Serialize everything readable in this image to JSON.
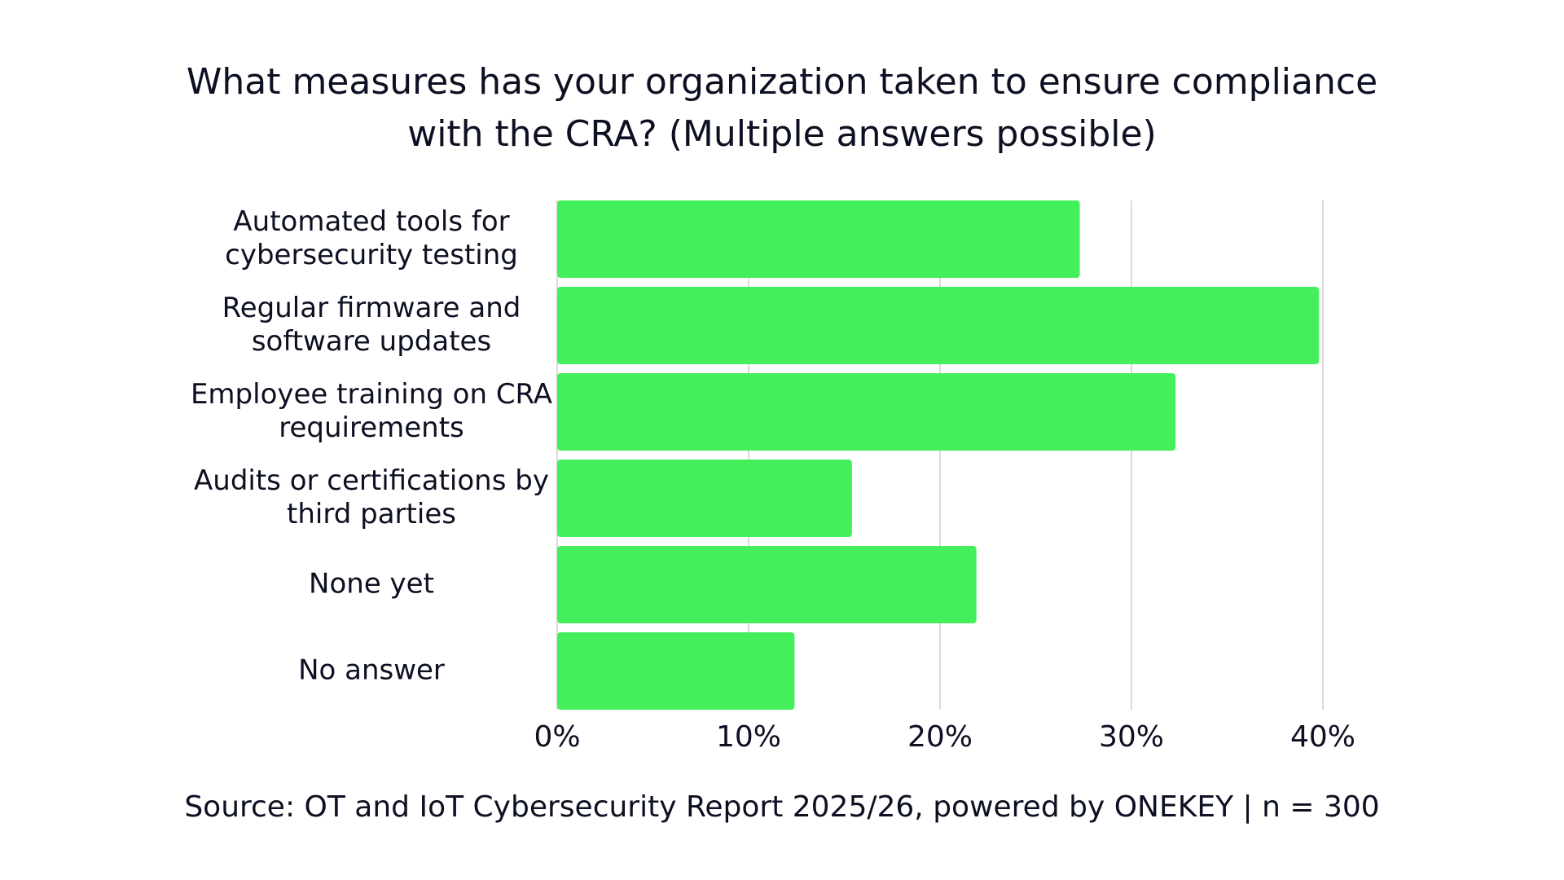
{
  "title_lines": [
    "What measures has your organization taken to ensure compliance",
    "with the CRA? (Multiple answers possible)"
  ],
  "source_note": "Source: OT and IoT Cybersecurity Report 2025/26, powered by ONEKEY | n = 300",
  "colors": {
    "bar": "#44ef5c",
    "grid": "#cfcfcf",
    "text": "#0d1022"
  },
  "chart_data": {
    "type": "bar",
    "orientation": "horizontal",
    "title": "What measures has your organization taken to ensure compliance with the CRA? (Multiple answers possible)",
    "categories": [
      "Automated tools for cybersecurity testing",
      "Regular firmware and software updates",
      "Employee training on CRA requirements",
      "Audits or certifications by third parties",
      "None yet",
      "No answer"
    ],
    "category_label_lines": [
      [
        "Automated tools for",
        "cybersecurity testing"
      ],
      [
        "Regular firmware and",
        "software updates"
      ],
      [
        "Employee training on CRA",
        "requirements"
      ],
      [
        "Audits or certifications by",
        "third parties"
      ],
      [
        "None yet"
      ],
      [
        "No answer"
      ]
    ],
    "values": [
      27.3,
      39.8,
      32.3,
      15.4,
      21.9,
      12.4
    ],
    "unit": "%",
    "xlim": [
      0,
      40
    ],
    "x_ticks": [
      0,
      10,
      20,
      30,
      40
    ],
    "x_tick_labels": [
      "0%",
      "10%",
      "20%",
      "30%",
      "40%"
    ],
    "grid": "vertical",
    "legend": "none"
  }
}
